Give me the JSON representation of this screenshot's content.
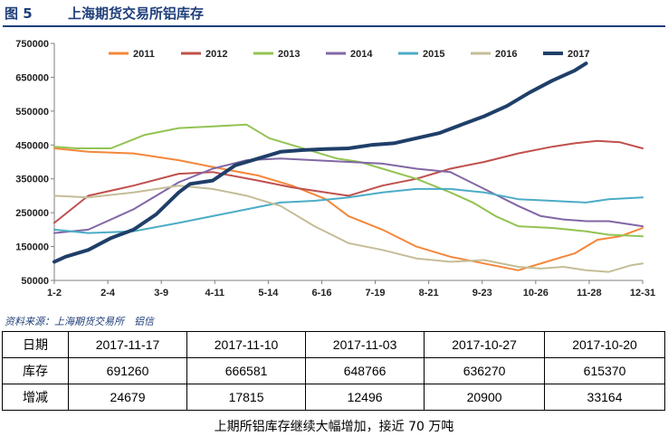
{
  "header": {
    "figure_label": "图 5",
    "title": "上海期货交易所铝库存"
  },
  "source": "资料来源：上海期货交易所　铝信",
  "caption": "上期所铝库存继续大幅增加，接近 70 万吨",
  "table": {
    "header_row": [
      "日期",
      "2017-11-17",
      "2017-11-10",
      "2017-11-03",
      "2017-10-27",
      "2017-10-20"
    ],
    "rows": [
      {
        "label": "库存",
        "values": [
          "691260",
          "666581",
          "648766",
          "636270",
          "615370"
        ]
      },
      {
        "label": "增减",
        "values": [
          "24679",
          "17815",
          "12496",
          "20900",
          "33164"
        ]
      }
    ]
  },
  "chart_data": {
    "type": "line",
    "title": "",
    "xlabel": "",
    "ylabel": "",
    "x_tick_labels": [
      "1-2",
      "2-4",
      "3-9",
      "4-11",
      "5-14",
      "6-16",
      "7-19",
      "8-21",
      "9-23",
      "10-26",
      "11-28",
      "12-31"
    ],
    "x_week_range": [
      1,
      53
    ],
    "ylim": [
      50000,
      750000
    ],
    "y_ticks": [
      50000,
      150000,
      250000,
      350000,
      450000,
      550000,
      650000,
      750000
    ],
    "y_tick_labels": [
      "50000",
      "150000",
      "250000",
      "350000",
      "450000",
      "550000",
      "650000",
      "750000"
    ],
    "grid": false,
    "legend_position": "top",
    "series": [
      {
        "name": "2011",
        "color": "#f4873a",
        "width": 2,
        "x": [
          1,
          4,
          8,
          12,
          15,
          19,
          22,
          25,
          27,
          30,
          33,
          36,
          39,
          42,
          45,
          47,
          49,
          51,
          53
        ],
        "y": [
          440000,
          430000,
          425000,
          405000,
          385000,
          360000,
          330000,
          290000,
          240000,
          200000,
          150000,
          120000,
          100000,
          80000,
          110000,
          130000,
          170000,
          180000,
          205000
        ]
      },
      {
        "name": "2012",
        "color": "#c0504d",
        "width": 2,
        "x": [
          1,
          4,
          8,
          12,
          15,
          19,
          22,
          25,
          27,
          30,
          33,
          36,
          39,
          42,
          45,
          47,
          49,
          51,
          53
        ],
        "y": [
          220000,
          300000,
          330000,
          365000,
          370000,
          345000,
          325000,
          310000,
          300000,
          330000,
          350000,
          380000,
          400000,
          425000,
          445000,
          455000,
          462000,
          458000,
          440000
        ]
      },
      {
        "name": "2013",
        "color": "#93c353",
        "width": 2,
        "x": [
          1,
          3,
          6,
          9,
          12,
          15,
          18,
          20,
          22,
          24,
          26,
          28,
          30,
          33,
          36,
          38,
          40,
          42,
          45,
          48,
          50,
          52,
          53
        ],
        "y": [
          445000,
          440000,
          440000,
          480000,
          500000,
          505000,
          510000,
          470000,
          450000,
          430000,
          410000,
          400000,
          380000,
          350000,
          310000,
          280000,
          240000,
          210000,
          205000,
          195000,
          185000,
          182000,
          180000
        ]
      },
      {
        "name": "2014",
        "color": "#8067a5",
        "width": 2,
        "x": [
          1,
          4,
          8,
          12,
          15,
          18,
          21,
          24,
          27,
          30,
          33,
          36,
          39,
          42,
          44,
          46,
          48,
          50,
          52,
          53
        ],
        "y": [
          190000,
          200000,
          260000,
          340000,
          380000,
          405000,
          410000,
          405000,
          400000,
          395000,
          380000,
          370000,
          320000,
          270000,
          240000,
          230000,
          225000,
          225000,
          215000,
          210000
        ]
      },
      {
        "name": "2015",
        "color": "#4bacc6",
        "width": 2,
        "x": [
          1,
          4,
          8,
          12,
          15,
          18,
          21,
          24,
          27,
          30,
          33,
          36,
          39,
          42,
          45,
          48,
          50,
          53
        ],
        "y": [
          200000,
          190000,
          195000,
          220000,
          240000,
          260000,
          280000,
          285000,
          295000,
          310000,
          320000,
          320000,
          310000,
          290000,
          285000,
          280000,
          290000,
          295000
        ]
      },
      {
        "name": "2016",
        "color": "#c4bd97",
        "width": 2,
        "x": [
          1,
          4,
          8,
          12,
          15,
          18,
          21,
          24,
          27,
          30,
          33,
          36,
          39,
          42,
          44,
          46,
          48,
          50,
          52,
          53
        ],
        "y": [
          300000,
          295000,
          310000,
          330000,
          320000,
          300000,
          270000,
          210000,
          160000,
          140000,
          115000,
          105000,
          110000,
          90000,
          85000,
          90000,
          80000,
          75000,
          95000,
          100000
        ]
      },
      {
        "name": "2017",
        "color": "#1f3f69",
        "width": 4,
        "x": [
          1,
          2,
          4,
          6,
          8,
          10,
          12,
          13,
          15,
          17,
          19,
          21,
          23,
          25,
          27,
          29,
          31,
          33,
          35,
          37,
          39,
          41,
          43,
          45,
          46,
          47,
          48
        ],
        "y": [
          105000,
          120000,
          140000,
          175000,
          200000,
          245000,
          310000,
          335000,
          345000,
          390000,
          410000,
          430000,
          435000,
          438000,
          440000,
          450000,
          455000,
          470000,
          485000,
          510000,
          535000,
          565000,
          605000,
          640000,
          655000,
          670000,
          691000
        ]
      }
    ]
  }
}
